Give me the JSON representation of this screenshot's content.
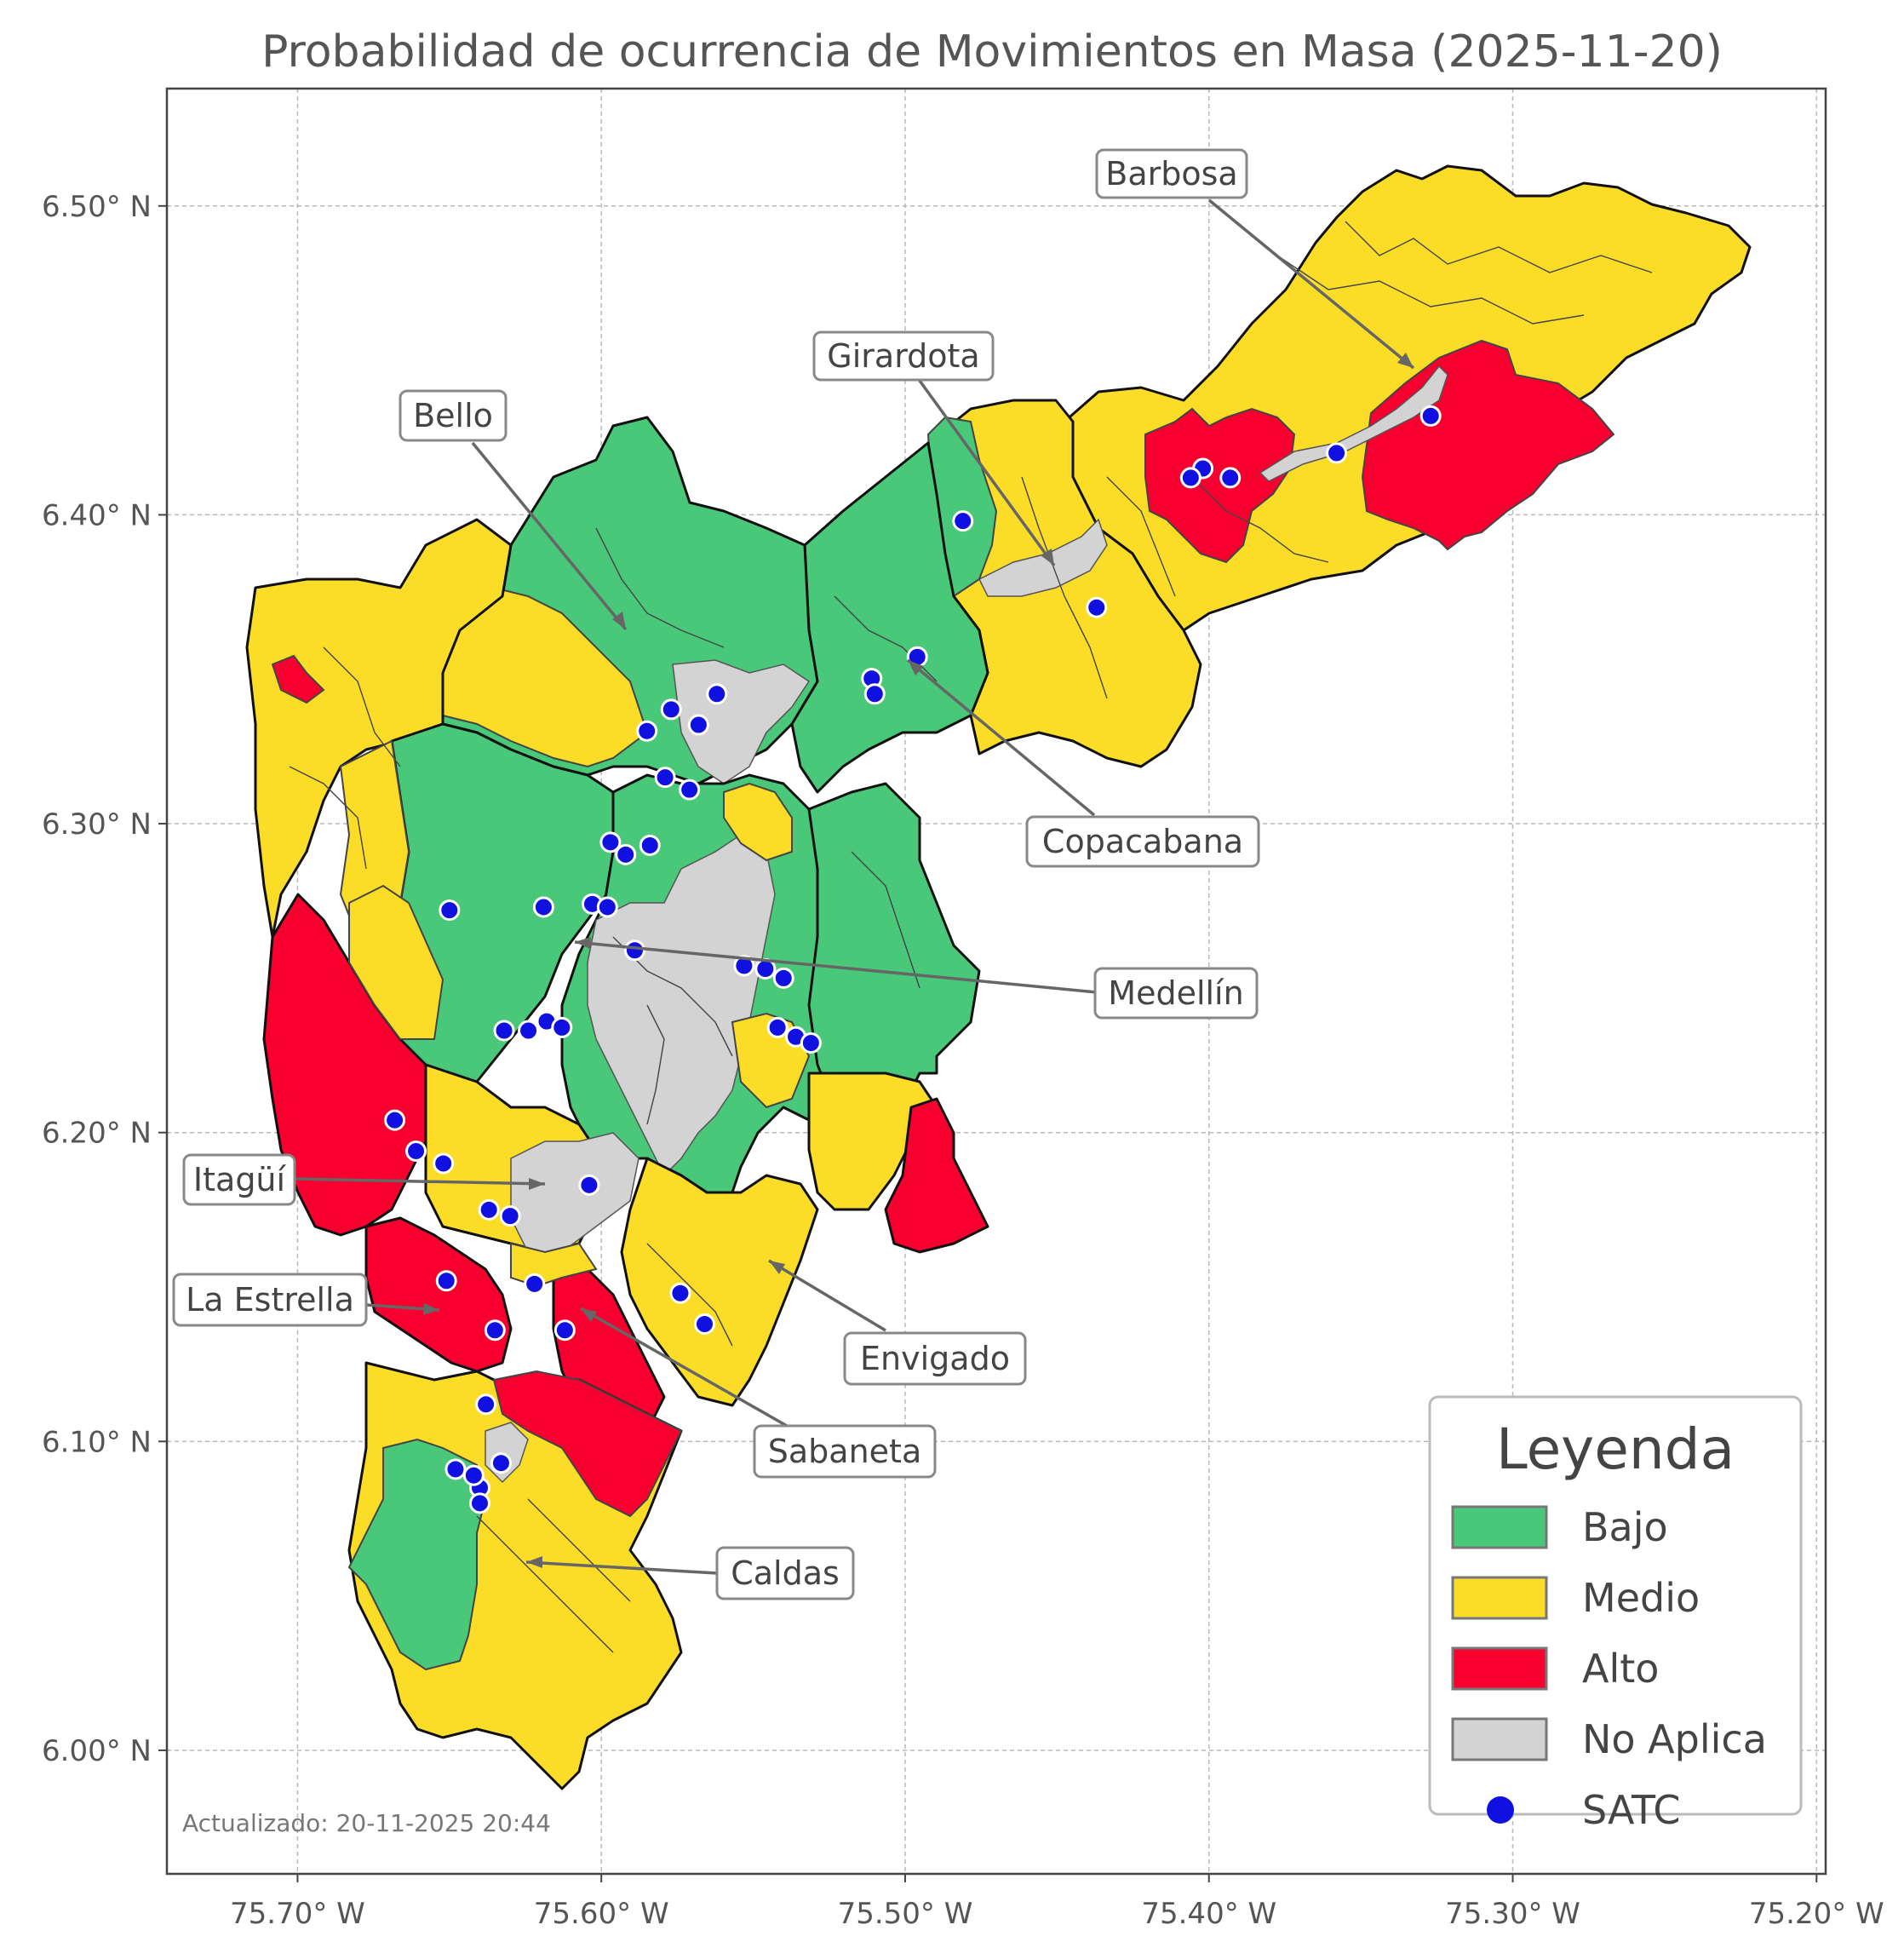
{
  "title": "Probabilidad de ocurrencia de Movimientos en Masa (2025-11-20)",
  "axes": {
    "x_ticks": [
      "75.70° W",
      "75.60° W",
      "75.50° W",
      "75.40° W",
      "75.30° W",
      "75.20° W"
    ],
    "y_ticks": [
      "6.50° N",
      "6.40° N",
      "6.30° N",
      "6.20° N",
      "6.10° N",
      "6.00° N"
    ],
    "x_range": [
      -75.743,
      -75.197
    ],
    "y_range": [
      5.96,
      6.538
    ]
  },
  "colors": {
    "bajo": "#48c878",
    "medio": "#fbdd28",
    "alto": "#f7002f",
    "no_aplica": "#d3d3d3",
    "satc": "#1010e0"
  },
  "municipalities": [
    {
      "name": "Barbosa",
      "class": "medio"
    },
    {
      "name": "Girardota",
      "class": "medio"
    },
    {
      "name": "Copacabana",
      "class": "bajo"
    },
    {
      "name": "Bello",
      "class": "bajo"
    },
    {
      "name": "Medellín",
      "class": "bajo"
    },
    {
      "name": "Itagüí",
      "class": "no_aplica"
    },
    {
      "name": "Envigado",
      "class": "medio"
    },
    {
      "name": "Sabaneta",
      "class": "alto"
    },
    {
      "name": "La Estrella",
      "class": "alto"
    },
    {
      "name": "Caldas",
      "class": "medio"
    }
  ],
  "labels": {
    "barbosa": "Barbosa",
    "girardota": "Girardota",
    "bello": "Bello",
    "copacabana": "Copacabana",
    "medellin": "Medellín",
    "itagui": "Itagüí",
    "la_estrella": "La Estrella",
    "envigado": "Envigado",
    "sabaneta": "Sabaneta",
    "caldas": "Caldas"
  },
  "satc_stations": [
    [
      -75.327,
      6.432
    ],
    [
      -75.358,
      6.42
    ],
    [
      -75.393,
      6.412
    ],
    [
      -75.402,
      6.415
    ],
    [
      -75.406,
      6.412
    ],
    [
      -75.481,
      6.398
    ],
    [
      -75.437,
      6.37
    ],
    [
      -75.496,
      6.354
    ],
    [
      -75.511,
      6.347
    ],
    [
      -75.51,
      6.342
    ],
    [
      -75.562,
      6.342
    ],
    [
      -75.568,
      6.332
    ],
    [
      -75.577,
      6.337
    ],
    [
      -75.585,
      6.33
    ],
    [
      -75.579,
      6.315
    ],
    [
      -75.571,
      6.311
    ],
    [
      -75.597,
      6.294
    ],
    [
      -75.592,
      6.29
    ],
    [
      -75.584,
      6.293
    ],
    [
      -75.65,
      6.272
    ],
    [
      -75.619,
      6.273
    ],
    [
      -75.603,
      6.274
    ],
    [
      -75.598,
      6.273
    ],
    [
      -75.589,
      6.259
    ],
    [
      -75.553,
      6.254
    ],
    [
      -75.546,
      6.253
    ],
    [
      -75.54,
      6.25
    ],
    [
      -75.542,
      6.234
    ],
    [
      -75.536,
      6.231
    ],
    [
      -75.531,
      6.229
    ],
    [
      -75.618,
      6.236
    ],
    [
      -75.624,
      6.233
    ],
    [
      -75.632,
      6.233
    ],
    [
      -75.613,
      6.234
    ],
    [
      -75.668,
      6.204
    ],
    [
      -75.661,
      6.194
    ],
    [
      -75.652,
      6.19
    ],
    [
      -75.604,
      6.183
    ],
    [
      -75.637,
      6.175
    ],
    [
      -75.63,
      6.173
    ],
    [
      -75.651,
      6.152
    ],
    [
      -75.622,
      6.151
    ],
    [
      -75.574,
      6.148
    ],
    [
      -75.566,
      6.138
    ],
    [
      -75.635,
      6.136
    ],
    [
      -75.612,
      6.136
    ],
    [
      -75.638,
      6.112
    ],
    [
      -75.648,
      6.091
    ],
    [
      -75.633,
      6.093
    ],
    [
      -75.64,
      6.085
    ],
    [
      -75.64,
      6.08
    ],
    [
      -75.642,
      6.089
    ]
  ],
  "legend": {
    "title": "Leyenda",
    "items": [
      {
        "label": "Bajo",
        "color": "#48c878"
      },
      {
        "label": "Medio",
        "color": "#fbdd28"
      },
      {
        "label": "Alto",
        "color": "#f7002f"
      },
      {
        "label": "No Aplica",
        "color": "#d3d3d3"
      },
      {
        "label": "SATC",
        "color": "#1010e0"
      }
    ]
  },
  "updated": "Actualizado: 20-11-2025 20:44"
}
